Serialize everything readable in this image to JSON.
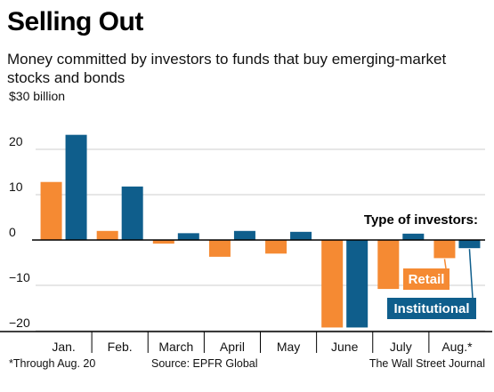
{
  "header": {
    "title": "Selling Out",
    "subtitle": "Money committed by investors to funds that buy emerging-market stocks and bonds"
  },
  "footer": {
    "note": "*Through Aug. 20",
    "source": "Source: EPFR Global",
    "credit": "The Wall Street Journal"
  },
  "chart_data": {
    "type": "bar",
    "categories": [
      "Jan.",
      "Feb.",
      "March",
      "April",
      "May",
      "June",
      "July",
      "Aug.*"
    ],
    "series": [
      {
        "name": "Retail",
        "color": "#f58a33",
        "values": [
          12.8,
          2.0,
          -0.8,
          -3.7,
          -3.0,
          -19.3,
          -10.8,
          -4.0
        ]
      },
      {
        "name": "Institutional",
        "color": "#0f5e8c",
        "values": [
          23.2,
          11.8,
          1.5,
          2.0,
          1.8,
          -19.3,
          1.4,
          -1.8
        ]
      }
    ],
    "ylim": [
      -21,
      33
    ],
    "yticks": [
      {
        "value": 30,
        "label": "$30 billion"
      },
      {
        "value": 20,
        "label": "20"
      },
      {
        "value": 10,
        "label": "10"
      },
      {
        "value": 0,
        "label": "0"
      },
      {
        "value": -10,
        "label": "−10"
      },
      {
        "value": -20,
        "label": "−20"
      }
    ],
    "legend_title": "Type of investors:",
    "legend_position": "right",
    "grid": true
  }
}
